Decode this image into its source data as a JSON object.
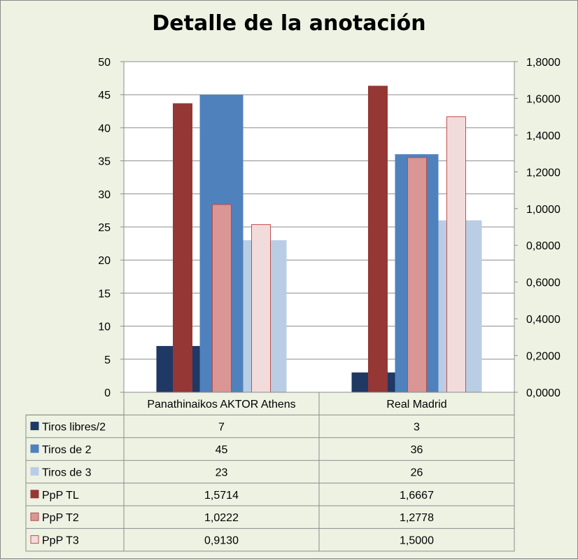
{
  "chart_data": {
    "type": "bar",
    "title": "Detalle de la anotación",
    "categories": [
      "Panathinaikos AKTOR Athens",
      "Real Madrid"
    ],
    "left_axis": {
      "ylim": [
        0,
        50
      ],
      "ticks": [
        "0",
        "5",
        "10",
        "15",
        "20",
        "25",
        "30",
        "35",
        "40",
        "45",
        "50"
      ]
    },
    "right_axis": {
      "ylim": [
        0,
        1.8
      ],
      "ticks": [
        "0,0000",
        "0,2000",
        "0,4000",
        "0,6000",
        "0,8000",
        "1,0000",
        "1,2000",
        "1,4000",
        "1,6000",
        "1,8000"
      ]
    },
    "grid": true,
    "legend": "data-table-below",
    "series": [
      {
        "name": "Tiros libres/2",
        "axis": "left",
        "values": [
          7,
          3
        ],
        "labels": [
          "7",
          "3"
        ],
        "color": "#1f3864",
        "border": "#1f3864"
      },
      {
        "name": "Tiros de 2",
        "axis": "left",
        "values": [
          45,
          36
        ],
        "labels": [
          "45",
          "36"
        ],
        "color": "#4f81bd",
        "border": "#4f81bd"
      },
      {
        "name": "Tiros de 3",
        "axis": "left",
        "values": [
          23,
          26
        ],
        "labels": [
          "23",
          "26"
        ],
        "color": "#b9cde5",
        "border": "#b9cde5"
      },
      {
        "name": "PpP TL",
        "axis": "right",
        "values": [
          1.5714,
          1.6667
        ],
        "labels": [
          "1,5714",
          "1,6667"
        ],
        "color": "#953735",
        "border": "#953735"
      },
      {
        "name": "PpP T2",
        "axis": "right",
        "values": [
          1.0222,
          1.2778
        ],
        "labels": [
          "1,0222",
          "1,2778"
        ],
        "color": "#d99694",
        "border": "#b34f4c"
      },
      {
        "name": "PpP T3",
        "axis": "right",
        "values": [
          0.913,
          1.5
        ],
        "labels": [
          "0,9130",
          "1,5000"
        ],
        "color": "#f2dcdb",
        "border": "#c0504d"
      }
    ]
  }
}
